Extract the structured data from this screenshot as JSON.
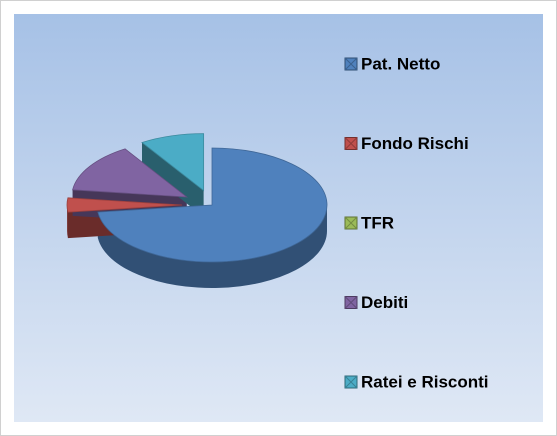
{
  "chart_data": {
    "type": "pie",
    "categories": [
      "Pat. Netto",
      "Fondo Rischi",
      "TFR",
      "Debiti",
      "Ratei e Risconti"
    ],
    "values": [
      73,
      4,
      0,
      14,
      9
    ],
    "colors": [
      "#4f81bd",
      "#c0504d",
      "#9bbb59",
      "#8064a2",
      "#4bacc6"
    ],
    "legend": "right"
  }
}
